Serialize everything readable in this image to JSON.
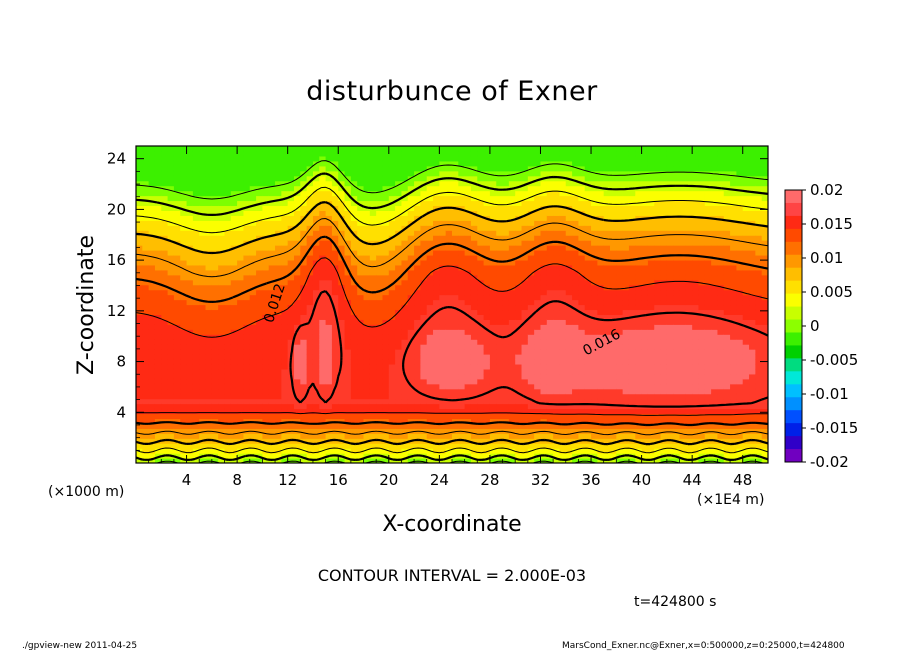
{
  "chart_data": {
    "type": "heatmap",
    "title": "disturbunce of Exner",
    "xlabel": "X-coordinate",
    "ylabel": "Z-coordinate",
    "x_unit_left": "(×1000 m)",
    "x_unit_right": "(×1E4 m)",
    "x_ticks": [
      "4",
      "8",
      "12",
      "16",
      "20",
      "24",
      "28",
      "32",
      "36",
      "40",
      "44",
      "48"
    ],
    "x_tick_values": [
      4,
      8,
      12,
      16,
      20,
      24,
      28,
      32,
      36,
      40,
      44,
      48
    ],
    "xlim": [
      0,
      50
    ],
    "y_ticks": [
      "4",
      "8",
      "12",
      "16",
      "20",
      "24"
    ],
    "y_tick_values": [
      4,
      8,
      12,
      16,
      20,
      24
    ],
    "ylim": [
      0,
      25
    ],
    "colorbar": {
      "labels": [
        "0.02",
        "0.015",
        "0.01",
        "0.005",
        "0",
        "-0.005",
        "-0.01",
        "-0.015",
        "-0.02"
      ],
      "levels": [
        0.02,
        0.015,
        0.01,
        0.005,
        0,
        -0.005,
        -0.01,
        -0.015,
        -0.02
      ],
      "colors": [
        "#ff6a6a",
        "#ff4444",
        "#ff2a14",
        "#ff4a00",
        "#ff7000",
        "#ff9800",
        "#ffbe00",
        "#ffe000",
        "#fbff00",
        "#c8ff00",
        "#8cff00",
        "#3cf000",
        "#00d000",
        "#00dc80",
        "#00e8d8",
        "#00c0ff",
        "#0090ff",
        "#0050ff",
        "#0020e8",
        "#3000c8",
        "#7000c0"
      ]
    },
    "contour_labels": [
      "0.012",
      "0.016"
    ],
    "contour_interval_text": "CONTOUR INTERVAL = 2.000E-03",
    "time_text": "t=424800 s"
  },
  "footer": {
    "left": "./gpview-new  2011-04-25",
    "right": "MarsCond_Exner.nc@Exner,x=0:500000,z=0:25000,t=424800"
  }
}
